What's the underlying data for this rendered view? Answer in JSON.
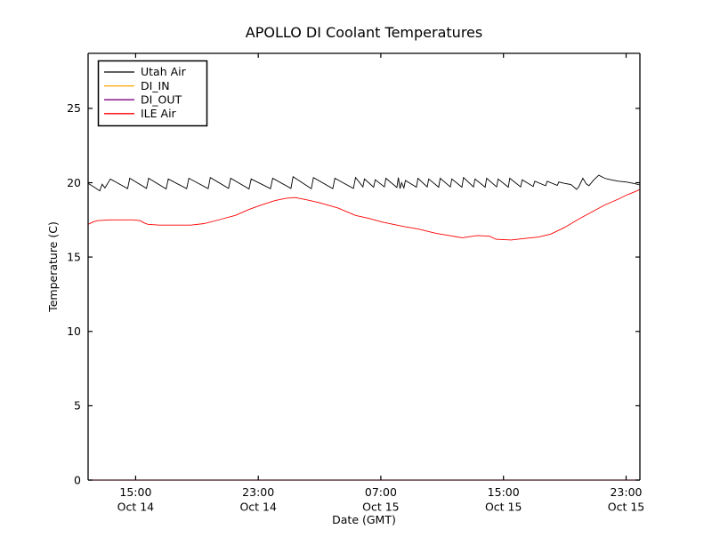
{
  "title": "APOLLO DI Coolant Temperatures",
  "axes": {
    "xlabel": "Date (GMT)",
    "ylabel": "Temperature (C)",
    "x_ticks": [
      {
        "time": "15:00",
        "date": "Oct 14"
      },
      {
        "time": "23:00",
        "date": "Oct 14"
      },
      {
        "time": "07:00",
        "date": "Oct 15"
      },
      {
        "time": "15:00",
        "date": "Oct 15"
      },
      {
        "time": "23:00",
        "date": "Oct 15"
      }
    ],
    "y_ticks": [
      0,
      5,
      10,
      15,
      20,
      25
    ]
  },
  "legend": {
    "items": [
      {
        "label": "Utah Air",
        "color": "#000000"
      },
      {
        "label": "DI_IN",
        "color": "#ffa500"
      },
      {
        "label": "DI_OUT",
        "color": "#800080"
      },
      {
        "label": "ILE Air",
        "color": "#ff0000"
      }
    ]
  },
  "chart_data": {
    "type": "line",
    "title": "APOLLO DI Coolant Temperatures",
    "xlabel": "Date (GMT)",
    "ylabel": "Temperature (C)",
    "grid": false,
    "legend_position": "upper left",
    "ylim": [
      0,
      28.7
    ],
    "x_unit": "hours since ~12:00 Oct 14 GMT",
    "x_span_hours": 36,
    "x_axis": {
      "tick_hours": [
        3.1,
        11.1,
        19.1,
        27.1,
        35.1
      ],
      "tick_labels": [
        "15:00 Oct 14",
        "23:00 Oct 14",
        "07:00 Oct 15",
        "15:00 Oct 15",
        "23:00 Oct 15"
      ]
    },
    "y_ticks": [
      0,
      5,
      10,
      15,
      20,
      25
    ],
    "series": [
      {
        "name": "Utah Air",
        "color": "#000000",
        "points": [
          [
            0,
            19.95
          ],
          [
            0.4,
            19.7
          ],
          [
            0.76,
            19.45
          ],
          [
            0.92,
            19.9
          ],
          [
            1.1,
            19.65
          ],
          [
            1.45,
            20.25
          ],
          [
            2.58,
            19.6
          ],
          [
            2.72,
            20.3
          ],
          [
            3.81,
            19.62
          ],
          [
            3.95,
            20.3
          ],
          [
            5.09,
            19.58
          ],
          [
            5.23,
            20.25
          ],
          [
            6.43,
            19.6
          ],
          [
            6.57,
            20.3
          ],
          [
            7.83,
            19.6
          ],
          [
            7.97,
            20.35
          ],
          [
            9.16,
            19.62
          ],
          [
            9.3,
            20.3
          ],
          [
            10.5,
            19.58
          ],
          [
            10.64,
            20.25
          ],
          [
            11.9,
            19.6
          ],
          [
            12.04,
            20.3
          ],
          [
            13.23,
            19.62
          ],
          [
            13.37,
            20.4
          ],
          [
            14.56,
            19.6
          ],
          [
            14.7,
            20.35
          ],
          [
            15.96,
            19.6
          ],
          [
            16.1,
            20.3
          ],
          [
            17.31,
            19.62
          ],
          [
            17.45,
            20.35
          ],
          [
            17.93,
            19.72
          ],
          [
            18.03,
            20.25
          ],
          [
            18.63,
            19.7
          ],
          [
            18.73,
            20.2
          ],
          [
            19.33,
            19.72
          ],
          [
            19.43,
            20.3
          ],
          [
            20.14,
            19.68
          ],
          [
            20.24,
            20.35
          ],
          [
            20.35,
            19.6
          ],
          [
            20.45,
            20.0
          ],
          [
            20.6,
            19.65
          ],
          [
            20.7,
            20.15
          ],
          [
            21.42,
            19.7
          ],
          [
            21.52,
            20.3
          ],
          [
            22.12,
            19.72
          ],
          [
            22.22,
            20.25
          ],
          [
            22.87,
            19.7
          ],
          [
            22.97,
            20.3
          ],
          [
            23.63,
            19.72
          ],
          [
            23.73,
            20.25
          ],
          [
            24.39,
            19.7
          ],
          [
            24.49,
            20.35
          ],
          [
            25.14,
            19.72
          ],
          [
            25.24,
            20.25
          ],
          [
            25.9,
            19.7
          ],
          [
            26.0,
            20.3
          ],
          [
            26.65,
            19.72
          ],
          [
            26.75,
            20.25
          ],
          [
            27.41,
            19.7
          ],
          [
            27.51,
            20.3
          ],
          [
            28.22,
            19.72
          ],
          [
            28.32,
            20.2
          ],
          [
            29.04,
            19.75
          ],
          [
            29.14,
            20.1
          ],
          [
            29.85,
            19.8
          ],
          [
            29.95,
            20.1
          ],
          [
            30.61,
            19.82
          ],
          [
            30.71,
            20.05
          ],
          [
            31.1,
            19.95
          ],
          [
            31.5,
            19.88
          ],
          [
            31.87,
            19.55
          ],
          [
            32.0,
            19.7
          ],
          [
            32.28,
            20.3
          ],
          [
            32.5,
            19.92
          ],
          [
            32.68,
            19.8
          ],
          [
            33.0,
            20.2
          ],
          [
            33.32,
            20.5
          ],
          [
            33.7,
            20.3
          ],
          [
            34.1,
            20.2
          ],
          [
            34.6,
            20.1
          ],
          [
            35.1,
            20.05
          ],
          [
            35.6,
            19.95
          ],
          [
            36,
            19.85
          ]
        ]
      },
      {
        "name": "DI_IN",
        "color": "#ffa500",
        "points": [
          [
            0,
            0
          ],
          [
            36,
            0
          ]
        ]
      },
      {
        "name": "DI_OUT",
        "color": "#800080",
        "points": [
          [
            0,
            0
          ],
          [
            36,
            0
          ]
        ]
      },
      {
        "name": "ILE Air",
        "color": "#ff0000",
        "points": [
          [
            0,
            17.2
          ],
          [
            0.3,
            17.35
          ],
          [
            0.6,
            17.45
          ],
          [
            1.45,
            17.5
          ],
          [
            2.9,
            17.5
          ],
          [
            3.4,
            17.45
          ],
          [
            3.65,
            17.3
          ],
          [
            3.9,
            17.2
          ],
          [
            4.65,
            17.15
          ],
          [
            6.7,
            17.15
          ],
          [
            7.56,
            17.25
          ],
          [
            8.7,
            17.55
          ],
          [
            9.6,
            17.8
          ],
          [
            10.5,
            18.2
          ],
          [
            11.3,
            18.5
          ],
          [
            12.2,
            18.8
          ],
          [
            12.9,
            18.95
          ],
          [
            13.5,
            19.0
          ],
          [
            14.25,
            18.85
          ],
          [
            15.1,
            18.65
          ],
          [
            16.3,
            18.3
          ],
          [
            17.45,
            17.8
          ],
          [
            18.3,
            17.6
          ],
          [
            19.2,
            17.35
          ],
          [
            19.9,
            17.2
          ],
          [
            20.6,
            17.05
          ],
          [
            21.5,
            16.9
          ],
          [
            22.7,
            16.6
          ],
          [
            23.55,
            16.45
          ],
          [
            24.4,
            16.3
          ],
          [
            25.4,
            16.45
          ],
          [
            26.2,
            16.4
          ],
          [
            26.6,
            16.2
          ],
          [
            27.6,
            16.15
          ],
          [
            28.5,
            16.25
          ],
          [
            29.4,
            16.35
          ],
          [
            30.2,
            16.55
          ],
          [
            31.1,
            17.0
          ],
          [
            32.0,
            17.55
          ],
          [
            32.8,
            18.0
          ],
          [
            33.7,
            18.5
          ],
          [
            34.6,
            18.9
          ],
          [
            35.2,
            19.2
          ],
          [
            35.8,
            19.45
          ],
          [
            36,
            19.55
          ]
        ]
      }
    ]
  }
}
